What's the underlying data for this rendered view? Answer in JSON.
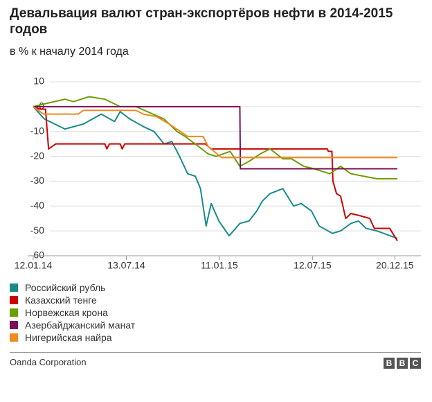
{
  "chart_data": {
    "type": "line",
    "title": "Девальвация валют стран-экспортёров нефти в 2014-2015 годов",
    "subtitle": "в % к началу 2014 года",
    "source": "Oanda Corporation",
    "logo": [
      "B",
      "B",
      "C"
    ],
    "xlim": [
      "2014-01-12",
      "2015-12-25"
    ],
    "xticks": [
      {
        "value": "2014-01-12",
        "label": "12.01.14"
      },
      {
        "value": "2014-07-13",
        "label": "13.07.14"
      },
      {
        "value": "2015-01-11",
        "label": "11.01.15"
      },
      {
        "value": "2015-07-12",
        "label": "12.07.15"
      },
      {
        "value": "2015-12-20",
        "label": "20.12.15"
      }
    ],
    "ylim": [
      -60,
      10
    ],
    "yticks": [
      10,
      0,
      -10,
      -20,
      -30,
      -40,
      -50,
      -60
    ],
    "grid": true,
    "series": [
      {
        "name": "Российский рубль",
        "color": "#1a8b8b",
        "x": [
          "2014-01-12",
          "2014-02-03",
          "2014-03-15",
          "2014-04-20",
          "2014-05-25",
          "2014-06-20",
          "2014-07-01",
          "2014-07-20",
          "2014-08-15",
          "2014-09-05",
          "2014-09-25",
          "2014-10-10",
          "2014-10-25",
          "2014-11-10",
          "2014-11-25",
          "2014-12-05",
          "2014-12-16",
          "2014-12-26",
          "2015-01-10",
          "2015-01-30",
          "2015-02-20",
          "2015-03-10",
          "2015-03-25",
          "2015-04-05",
          "2015-04-20",
          "2015-05-15",
          "2015-06-05",
          "2015-06-20",
          "2015-07-10",
          "2015-07-25",
          "2015-08-20",
          "2015-09-05",
          "2015-09-25",
          "2015-10-10",
          "2015-10-25",
          "2015-11-15",
          "2015-12-25"
        ],
        "values": [
          0,
          -5,
          -9,
          -7,
          -3,
          -6,
          -2,
          -5,
          -8,
          -10,
          -15,
          -14,
          -20,
          -27,
          -28,
          -33,
          -48,
          -39,
          -46,
          -52,
          -47,
          -46,
          -42,
          -38,
          -35,
          -33,
          -40,
          -39,
          -42,
          -48,
          -51,
          -50,
          -47,
          -46,
          -49,
          -50,
          -53
        ]
      },
      {
        "name": "Казахский тенге",
        "color": "#cc0000",
        "x": [
          "2014-01-12",
          "2014-01-25",
          "2014-02-05",
          "2014-02-11",
          "2014-02-25",
          "2014-06-01",
          "2014-06-05",
          "2014-06-10",
          "2014-07-01",
          "2014-07-05",
          "2014-07-10",
          "2014-12-15",
          "2014-12-25",
          "2015-08-10",
          "2015-08-12",
          "2015-08-19",
          "2015-08-21",
          "2015-08-28",
          "2015-09-05",
          "2015-09-15",
          "2015-09-25",
          "2015-10-15",
          "2015-11-01",
          "2015-11-10",
          "2015-12-10",
          "2015-12-25"
        ],
        "values": [
          0,
          -1,
          -1,
          -17,
          -15,
          -15,
          -17,
          -15,
          -15,
          -17,
          -15,
          -15,
          -17,
          -17,
          -18,
          -18,
          -30,
          -35,
          -36,
          -45,
          -43,
          -44,
          -45,
          -49,
          -49,
          -54
        ]
      },
      {
        "name": "Норвежская крона",
        "color": "#6a9f00",
        "x": [
          "2014-01-12",
          "2014-02-01",
          "2014-03-15",
          "2014-04-01",
          "2014-05-01",
          "2014-06-01",
          "2014-07-01",
          "2014-08-01",
          "2014-09-25",
          "2014-10-20",
          "2014-11-05",
          "2014-12-01",
          "2014-12-20",
          "2015-01-05",
          "2015-02-01",
          "2015-02-20",
          "2015-03-10",
          "2015-04-01",
          "2015-04-20",
          "2015-05-15",
          "2015-06-01",
          "2015-06-25",
          "2015-07-15",
          "2015-08-15",
          "2015-09-05",
          "2015-09-25",
          "2015-10-20",
          "2015-11-15",
          "2015-12-25"
        ],
        "values": [
          0,
          1,
          3,
          2,
          4,
          3,
          0,
          0,
          -5,
          -10,
          -12,
          -16,
          -19,
          -20,
          -18,
          -24,
          -22,
          -19,
          -17,
          -21,
          -21,
          -24,
          -25,
          -27,
          -24,
          -27,
          -28,
          -29,
          -29
        ]
      },
      {
        "name": "Азербайджанский манат",
        "color": "#7b0f5a",
        "x": [
          "2014-01-12",
          "2015-02-20",
          "2015-02-21",
          "2015-12-25"
        ],
        "values": [
          0,
          0,
          -25,
          -25
        ]
      },
      {
        "name": "Нигерийская найра",
        "color": "#f0891e",
        "x": [
          "2014-01-12",
          "2014-02-01",
          "2014-04-10",
          "2014-04-20",
          "2014-08-01",
          "2014-08-15",
          "2014-09-10",
          "2014-10-05",
          "2014-11-10",
          "2014-12-10",
          "2014-12-20",
          "2015-01-15",
          "2015-12-25"
        ],
        "values": [
          0,
          -3,
          -3,
          -1.5,
          -1.5,
          -3,
          -4,
          -7,
          -12,
          -12,
          -16,
          -20.5,
          -20.5
        ]
      }
    ]
  }
}
